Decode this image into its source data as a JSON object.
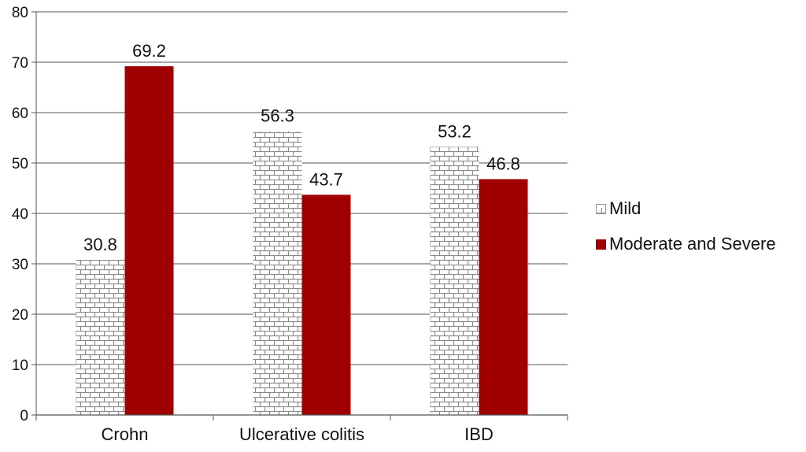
{
  "colors": {
    "moderate_severe": "#a00000",
    "mild_pattern_line": "#8a8a8a",
    "grid": "#555555"
  },
  "chart_data": {
    "type": "bar",
    "categories": [
      "Crohn",
      "Ulcerative colitis",
      "IBD"
    ],
    "series": [
      {
        "name": "Mild",
        "values": [
          30.8,
          56.3,
          53.2
        ],
        "style": "brick-pattern"
      },
      {
        "name": "Moderate and Severe",
        "values": [
          69.2,
          43.7,
          46.8
        ],
        "color": "#a00000"
      }
    ],
    "ylim": [
      0,
      80
    ],
    "yticks": [
      0,
      10,
      20,
      30,
      40,
      50,
      60,
      70,
      80
    ],
    "grid": true,
    "legend_position": "right",
    "data_labels": true
  }
}
